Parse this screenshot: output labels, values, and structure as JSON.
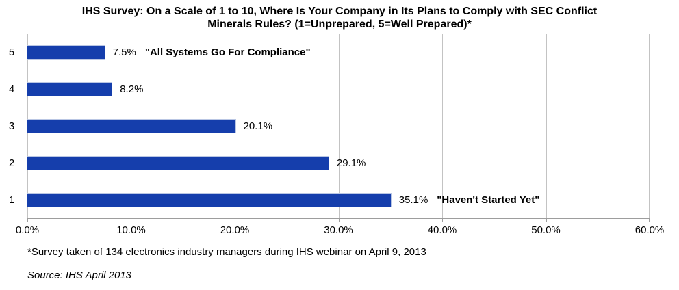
{
  "chart_data": {
    "type": "bar",
    "orientation": "horizontal",
    "title": "IHS Survey: On a Scale of 1 to 10, Where Is Your Company in Its Plans to Comply with SEC Conflict Minerals Rules? (1=Unprepared, 5=Well Prepared)*",
    "categories": [
      "5",
      "4",
      "3",
      "2",
      "1"
    ],
    "values": [
      7.5,
      8.2,
      20.1,
      29.1,
      35.1
    ],
    "value_labels": [
      "7.5%",
      "8.2%",
      "20.1%",
      "29.1%",
      "35.1%"
    ],
    "annotations": [
      {
        "category": "5",
        "text": "\"All Systems Go For Compliance\""
      },
      {
        "category": "1",
        "text": "\"Haven't Started Yet\""
      }
    ],
    "xlim": [
      0,
      60
    ],
    "x_ticks": [
      "0.0%",
      "10.0%",
      "20.0%",
      "30.0%",
      "40.0%",
      "50.0%",
      "60.0%"
    ],
    "xlabel": "",
    "ylabel": "",
    "grid": true,
    "legend": false,
    "bar_color": "#153eac",
    "gridline_color": "#c3c3c3"
  },
  "footnote": "*Survey taken of 134 electronics industry managers during IHS webinar on April 9, 2013",
  "source": "Source: IHS April 2013"
}
